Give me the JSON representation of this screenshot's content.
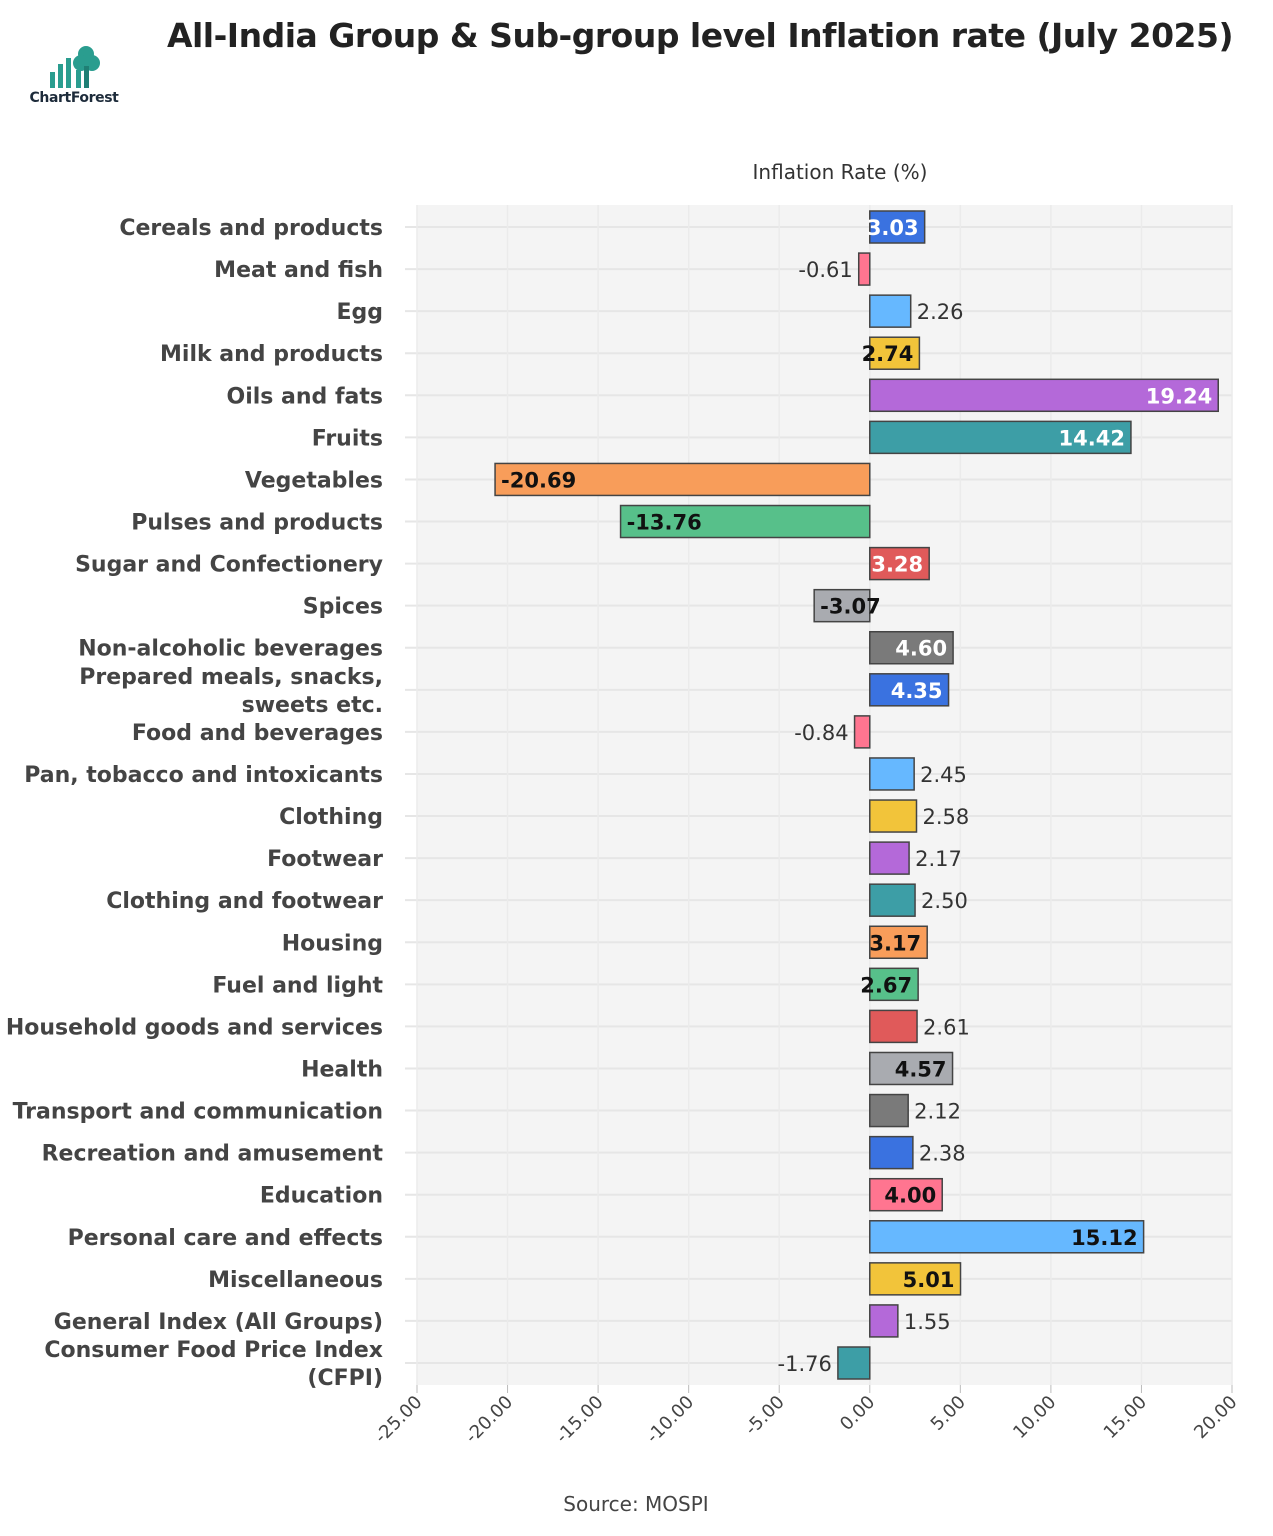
{
  "header": {
    "title": "All-India Group & Sub-group level Inflation rate (July 2025)",
    "logo_text": "ChartForest"
  },
  "footer": {
    "source": "Source: MOSPI"
  },
  "chart_data": {
    "type": "bar",
    "orientation": "horizontal",
    "title": "All-India Group & Sub-group level Inflation rate (July 2025)",
    "xlabel": "Inflation Rate (%)",
    "ylabel": "",
    "xlim": [
      -25,
      20
    ],
    "xticks": [
      "-25.00",
      "-20.00",
      "-15.00",
      "-10.00",
      "-5.00",
      "0.00",
      "5.00",
      "10.00",
      "15.00",
      "20.00"
    ],
    "grid": true,
    "categories": [
      "Cereals and products",
      "Meat and fish",
      "Egg",
      "Milk and products",
      "Oils and fats",
      "Fruits",
      "Vegetables",
      "Pulses and products",
      "Sugar and Confectionery",
      "Spices",
      "Non-alcoholic beverages",
      "Prepared meals, snacks, sweets etc.",
      "Food and beverages",
      "Pan, tobacco and intoxicants",
      "Clothing",
      "Footwear",
      "Clothing and footwear",
      "Housing",
      "Fuel and light",
      "Household goods and services",
      "Health",
      "Transport and communication",
      "Recreation and amusement",
      "Education",
      "Personal care and effects",
      "Miscellaneous",
      "General Index (All Groups)",
      "Consumer Food Price Index (CFPI)"
    ],
    "values": [
      3.03,
      -0.61,
      2.26,
      2.74,
      19.24,
      14.42,
      -20.69,
      -13.76,
      3.28,
      -3.07,
      4.6,
      4.35,
      -0.84,
      2.45,
      2.58,
      2.17,
      2.5,
      3.17,
      2.67,
      2.61,
      4.57,
      2.12,
      2.38,
      4.0,
      15.12,
      5.01,
      1.55,
      -1.76
    ],
    "colors": [
      "#3a72e0",
      "#ff7590",
      "#66b8ff",
      "#f2c43a",
      "#b469d9",
      "#3d9ea6",
      "#f89d5a",
      "#57c08a",
      "#e05a5a",
      "#a9abb0",
      "#7a7a7a"
    ]
  }
}
